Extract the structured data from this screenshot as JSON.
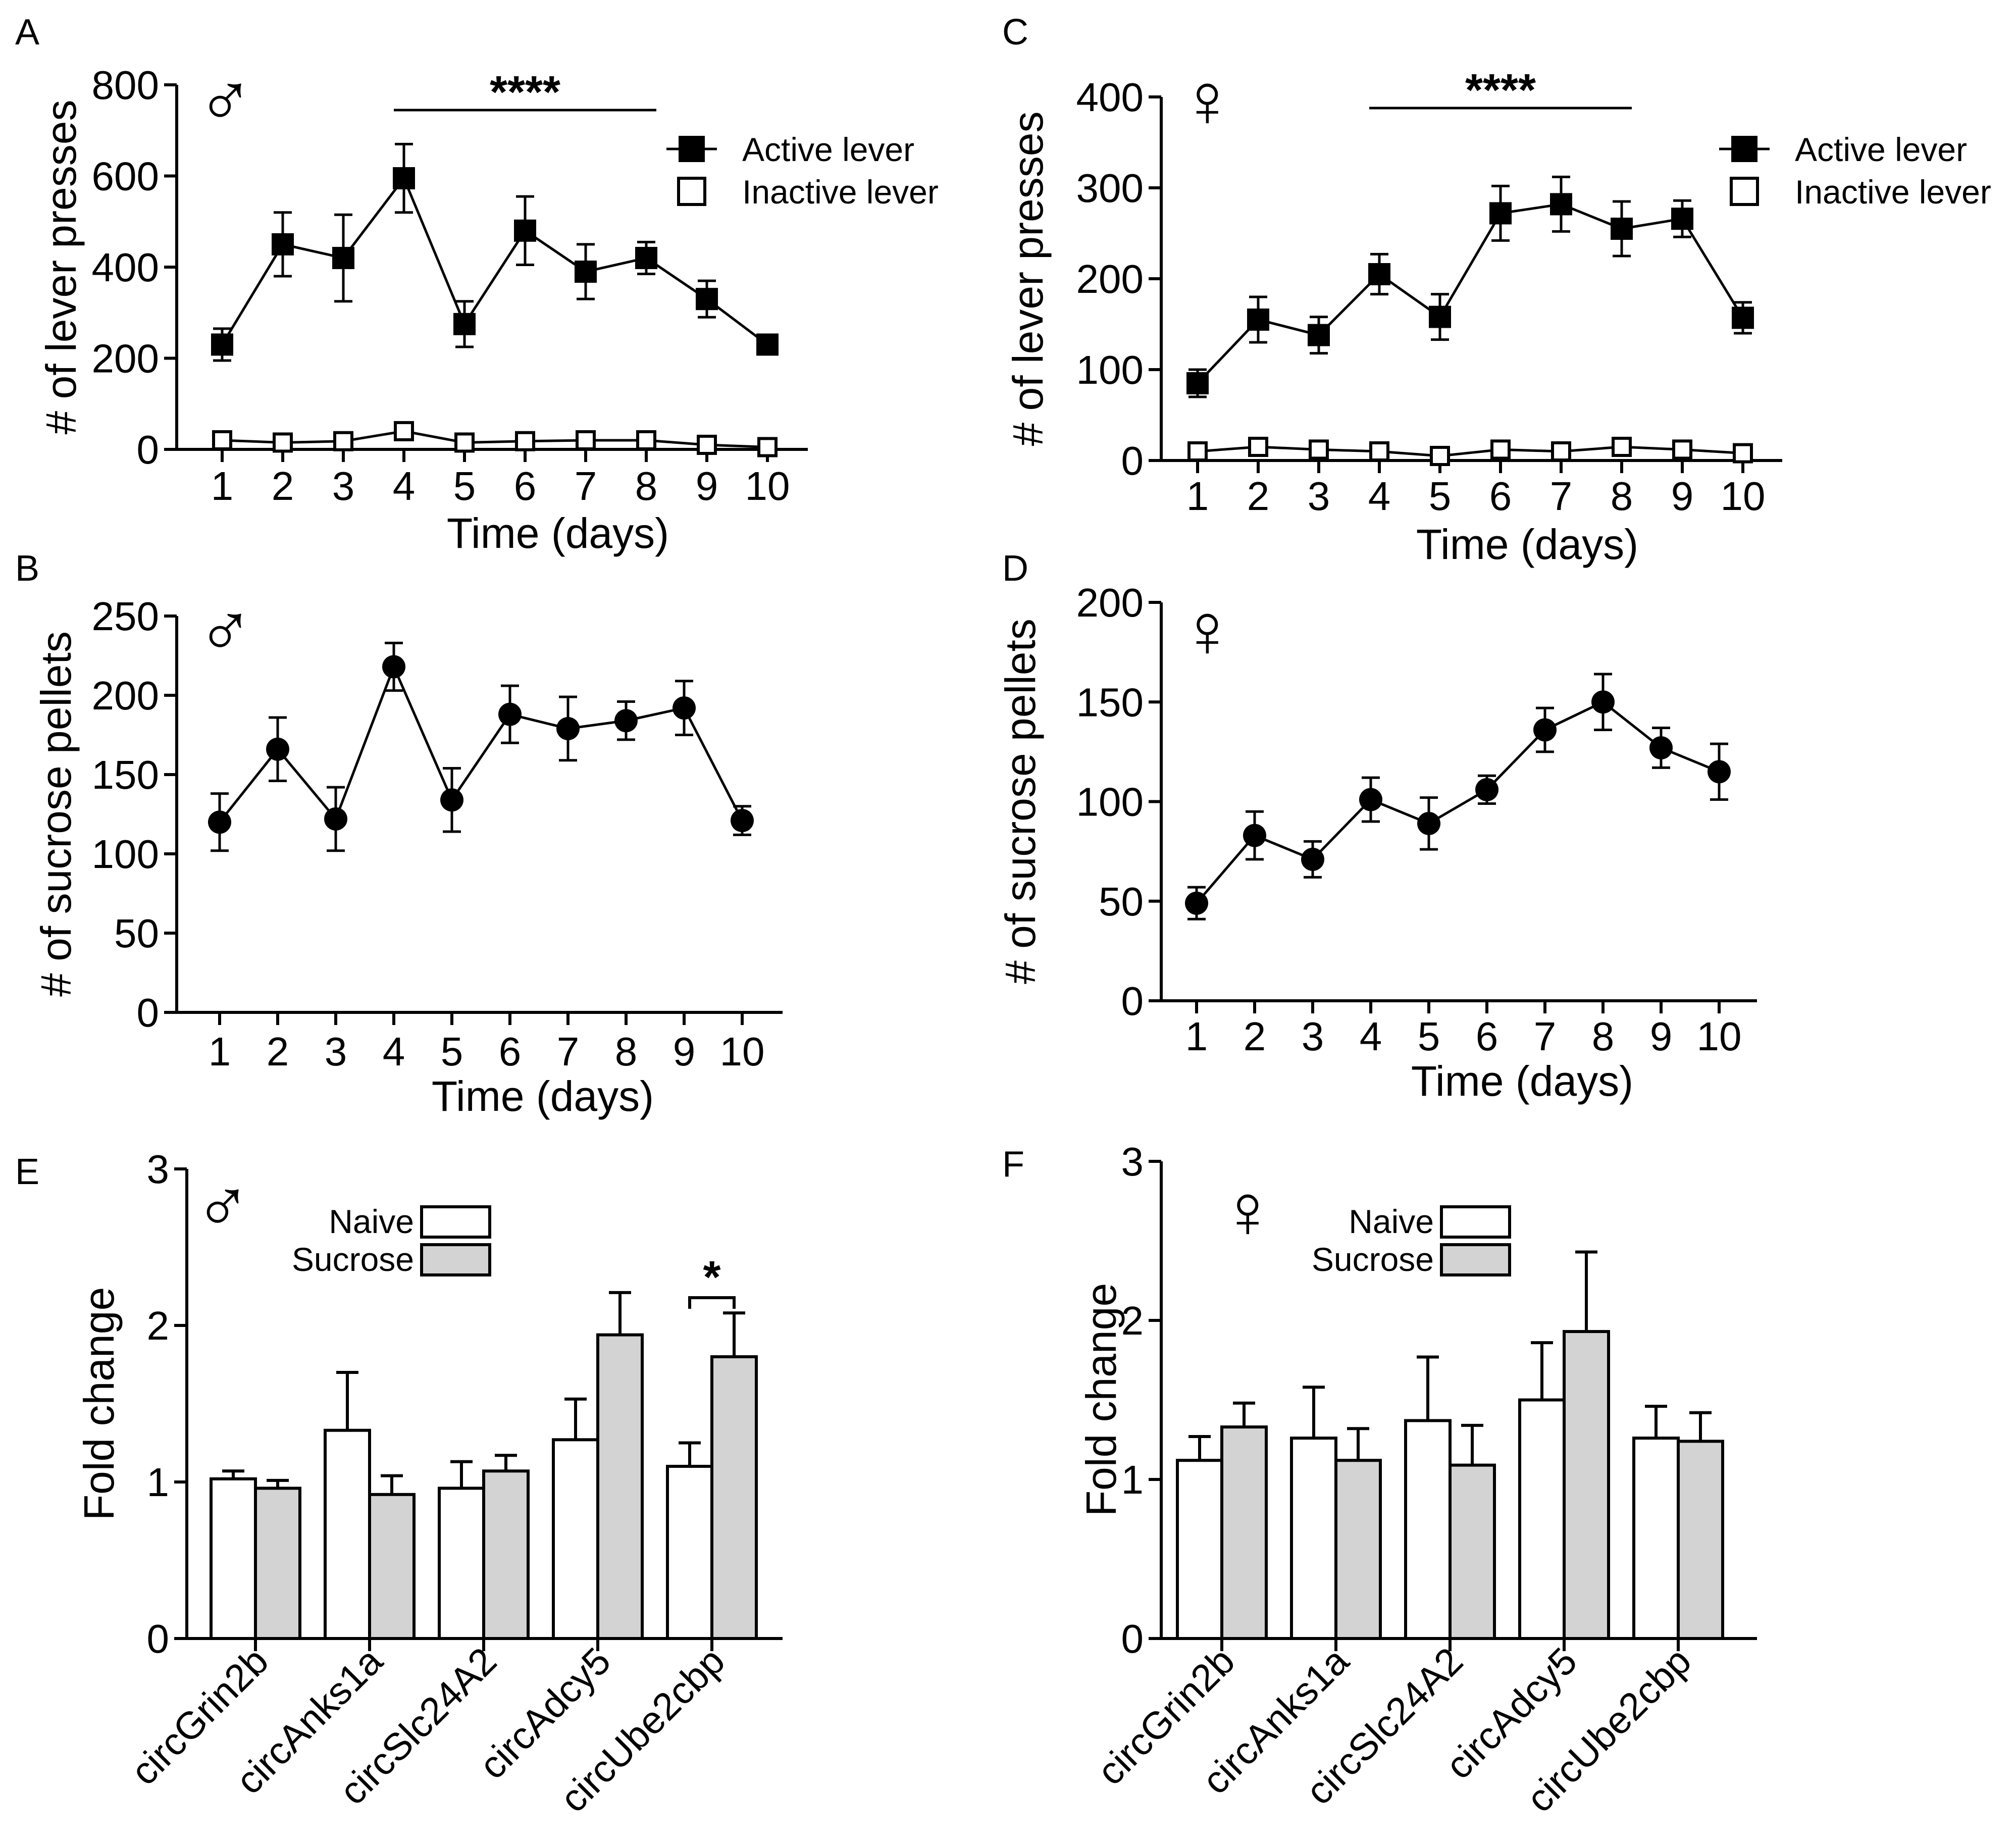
{
  "colors": {
    "ink": "#000000",
    "sucrose_fill": "#d3d3d3",
    "naive_fill": "#ffffff"
  },
  "chart_data": [
    {
      "id": "A",
      "type": "line",
      "letter": "A",
      "sex_symbol": "♂",
      "ylabel": "# of lever presses",
      "xlabel": "Time (days)",
      "ylim": [
        0,
        800
      ],
      "yticks": [
        0,
        200,
        400,
        600,
        800
      ],
      "x": [
        1,
        2,
        3,
        4,
        5,
        6,
        7,
        8,
        9,
        10
      ],
      "series": [
        {
          "name": "Active lever",
          "marker": "square-filled",
          "values": [
            230,
            450,
            420,
            595,
            275,
            480,
            390,
            420,
            330,
            230
          ],
          "errors": [
            35,
            70,
            95,
            75,
            50,
            75,
            60,
            35,
            40,
            15
          ]
        },
        {
          "name": "Inactive lever",
          "marker": "square-open",
          "values": [
            20,
            15,
            18,
            40,
            15,
            18,
            20,
            20,
            10,
            5
          ],
          "errors": [
            4,
            4,
            4,
            8,
            4,
            4,
            4,
            4,
            4,
            3
          ]
        }
      ],
      "significance": {
        "label": "****",
        "from": 4,
        "to": 8
      },
      "legend": "top-right",
      "grid": false
    },
    {
      "id": "B",
      "type": "line",
      "letter": "B",
      "sex_symbol": "♂",
      "ylabel": "# of sucrose pellets",
      "xlabel": "Time (days)",
      "ylim": [
        0,
        250
      ],
      "yticks": [
        0,
        50,
        100,
        150,
        200,
        250
      ],
      "x": [
        1,
        2,
        3,
        4,
        5,
        6,
        7,
        8,
        9,
        10
      ],
      "series": [
        {
          "name": "",
          "marker": "circle-filled",
          "values": [
            120,
            166,
            122,
            218,
            134,
            188,
            179,
            184,
            192,
            121
          ],
          "errors": [
            18,
            20,
            20,
            15,
            20,
            18,
            20,
            12,
            17,
            9
          ]
        }
      ],
      "grid": false
    },
    {
      "id": "C",
      "type": "line",
      "letter": "C",
      "sex_symbol": "♀",
      "ylabel": "# of lever presses",
      "xlabel": "Time (days)",
      "ylim": [
        0,
        400
      ],
      "yticks": [
        0,
        100,
        200,
        300,
        400
      ],
      "x": [
        1,
        2,
        3,
        4,
        5,
        6,
        7,
        8,
        9,
        10
      ],
      "series": [
        {
          "name": "Active lever",
          "marker": "square-filled",
          "values": [
            85,
            155,
            138,
            205,
            158,
            272,
            282,
            255,
            266,
            157
          ],
          "errors": [
            15,
            25,
            20,
            22,
            25,
            30,
            30,
            30,
            20,
            17
          ]
        },
        {
          "name": "Inactive lever",
          "marker": "square-open",
          "values": [
            10,
            15,
            12,
            10,
            5,
            12,
            10,
            15,
            12,
            8
          ],
          "errors": [
            3,
            4,
            4,
            3,
            2,
            4,
            3,
            4,
            3,
            3
          ]
        }
      ],
      "significance": {
        "label": "****",
        "from": 4,
        "to": 8
      },
      "legend": "top-right",
      "grid": false
    },
    {
      "id": "D",
      "type": "line",
      "letter": "D",
      "sex_symbol": "♀",
      "ylabel": "# of sucrose pellets",
      "xlabel": "Time (days)",
      "ylim": [
        0,
        200
      ],
      "yticks": [
        0,
        50,
        100,
        150,
        200
      ],
      "x": [
        1,
        2,
        3,
        4,
        5,
        6,
        7,
        8,
        9,
        10
      ],
      "series": [
        {
          "name": "",
          "marker": "circle-filled",
          "values": [
            49,
            83,
            71,
            101,
            89,
            106,
            136,
            150,
            127,
            115
          ],
          "errors": [
            8,
            12,
            9,
            11,
            13,
            7,
            11,
            14,
            10,
            14
          ]
        }
      ],
      "grid": false
    },
    {
      "id": "E",
      "type": "bar",
      "letter": "E",
      "sex_symbol": "♂",
      "ylabel": "Fold change",
      "xlabel": "",
      "ylim": [
        0,
        3
      ],
      "yticks": [
        0,
        1,
        2,
        3
      ],
      "categories": [
        "circGrin2b",
        "circAnks1a",
        "circSlc24A2",
        "circAdcy5",
        "circUbe2cbp"
      ],
      "series": [
        {
          "name": "Naive",
          "values": [
            1.02,
            1.33,
            0.96,
            1.27,
            1.1
          ],
          "errors": [
            0.05,
            0.37,
            0.17,
            0.26,
            0.15
          ]
        },
        {
          "name": "Sucrose",
          "values": [
            0.96,
            0.92,
            1.07,
            1.94,
            1.8
          ],
          "errors": [
            0.05,
            0.12,
            0.1,
            0.27,
            0.28
          ]
        }
      ],
      "significance": {
        "label": "*",
        "category": 4
      },
      "legend": "top-left",
      "grid": false
    },
    {
      "id": "F",
      "type": "bar",
      "letter": "F",
      "sex_symbol": "♀",
      "ylabel": "Fold change",
      "xlabel": "",
      "ylim": [
        0,
        3
      ],
      "yticks": [
        0,
        1,
        2,
        3
      ],
      "categories": [
        "circGrin2b",
        "circAnks1a",
        "circSlc24A2",
        "circAdcy5",
        "circUbe2cbp"
      ],
      "series": [
        {
          "name": "Naive",
          "values": [
            1.12,
            1.26,
            1.37,
            1.5,
            1.26
          ],
          "errors": [
            0.15,
            0.32,
            0.4,
            0.36,
            0.2
          ]
        },
        {
          "name": "Sucrose",
          "values": [
            1.33,
            1.12,
            1.09,
            1.93,
            1.24
          ],
          "errors": [
            0.15,
            0.2,
            0.25,
            0.5,
            0.18
          ]
        }
      ],
      "legend": "top-left",
      "grid": false
    }
  ]
}
